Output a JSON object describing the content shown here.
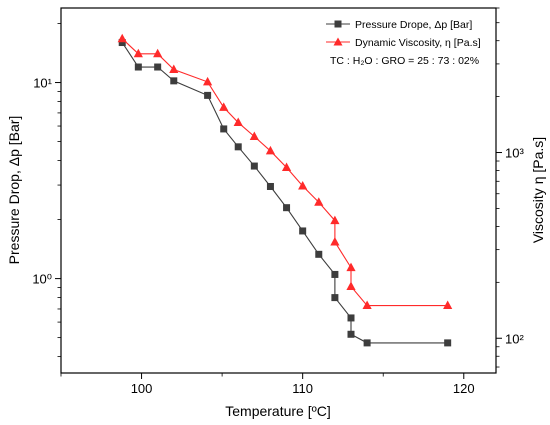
{
  "chart_data": {
    "type": "line",
    "xlabel": "Temperature [ºC]",
    "ylabel_left": "Pressure Drop, Δp [Bar]",
    "ylabel_right": "Viscosity η [Pa.s]",
    "xlim": [
      95,
      122
    ],
    "ylim_left": [
      0.33,
      24
    ],
    "ylim_right": [
      65,
      6000
    ],
    "yscale_left": "log",
    "yscale_right": "log",
    "x_ticks": [
      100,
      110,
      120
    ],
    "y_ticks_left": [
      {
        "value": 1,
        "label": "10⁰"
      },
      {
        "value": 10,
        "label": "10¹"
      }
    ],
    "y_ticks_right": [
      {
        "value": 100,
        "label": "10²"
      },
      {
        "value": 1000,
        "label": "10³"
      }
    ],
    "legend_position": "top-right",
    "legend_note": "TC : H₂O : GRO = 25 : 73 : 02%",
    "series": [
      {
        "name": "Pressure Drope, Δp [Bar]",
        "axis": "left",
        "color": "#3d3d3d",
        "marker": "square",
        "x": [
          98.8,
          99.8,
          101,
          102,
          104.1,
          105.1,
          106,
          107,
          108,
          109,
          110,
          111,
          112,
          112,
          113,
          113,
          114,
          119
        ],
        "y": [
          16,
          12,
          12,
          10.2,
          8.6,
          5.8,
          4.7,
          3.75,
          2.95,
          2.3,
          1.75,
          1.33,
          1.05,
          0.8,
          0.63,
          0.52,
          0.47,
          0.47
        ]
      },
      {
        "name": "Dynamic Viscosity, η   [Pa.s]",
        "axis": "right",
        "color": "#ff2a2a",
        "marker": "triangle",
        "x": [
          98.8,
          99.8,
          101,
          102,
          104.1,
          105.1,
          106,
          107,
          108,
          109,
          110,
          111,
          112,
          112,
          113,
          113,
          114,
          119
        ],
        "y": [
          4100,
          3400,
          3400,
          2800,
          2400,
          1750,
          1450,
          1220,
          1020,
          830,
          660,
          540,
          430,
          330,
          240,
          190,
          150,
          150
        ]
      }
    ]
  }
}
